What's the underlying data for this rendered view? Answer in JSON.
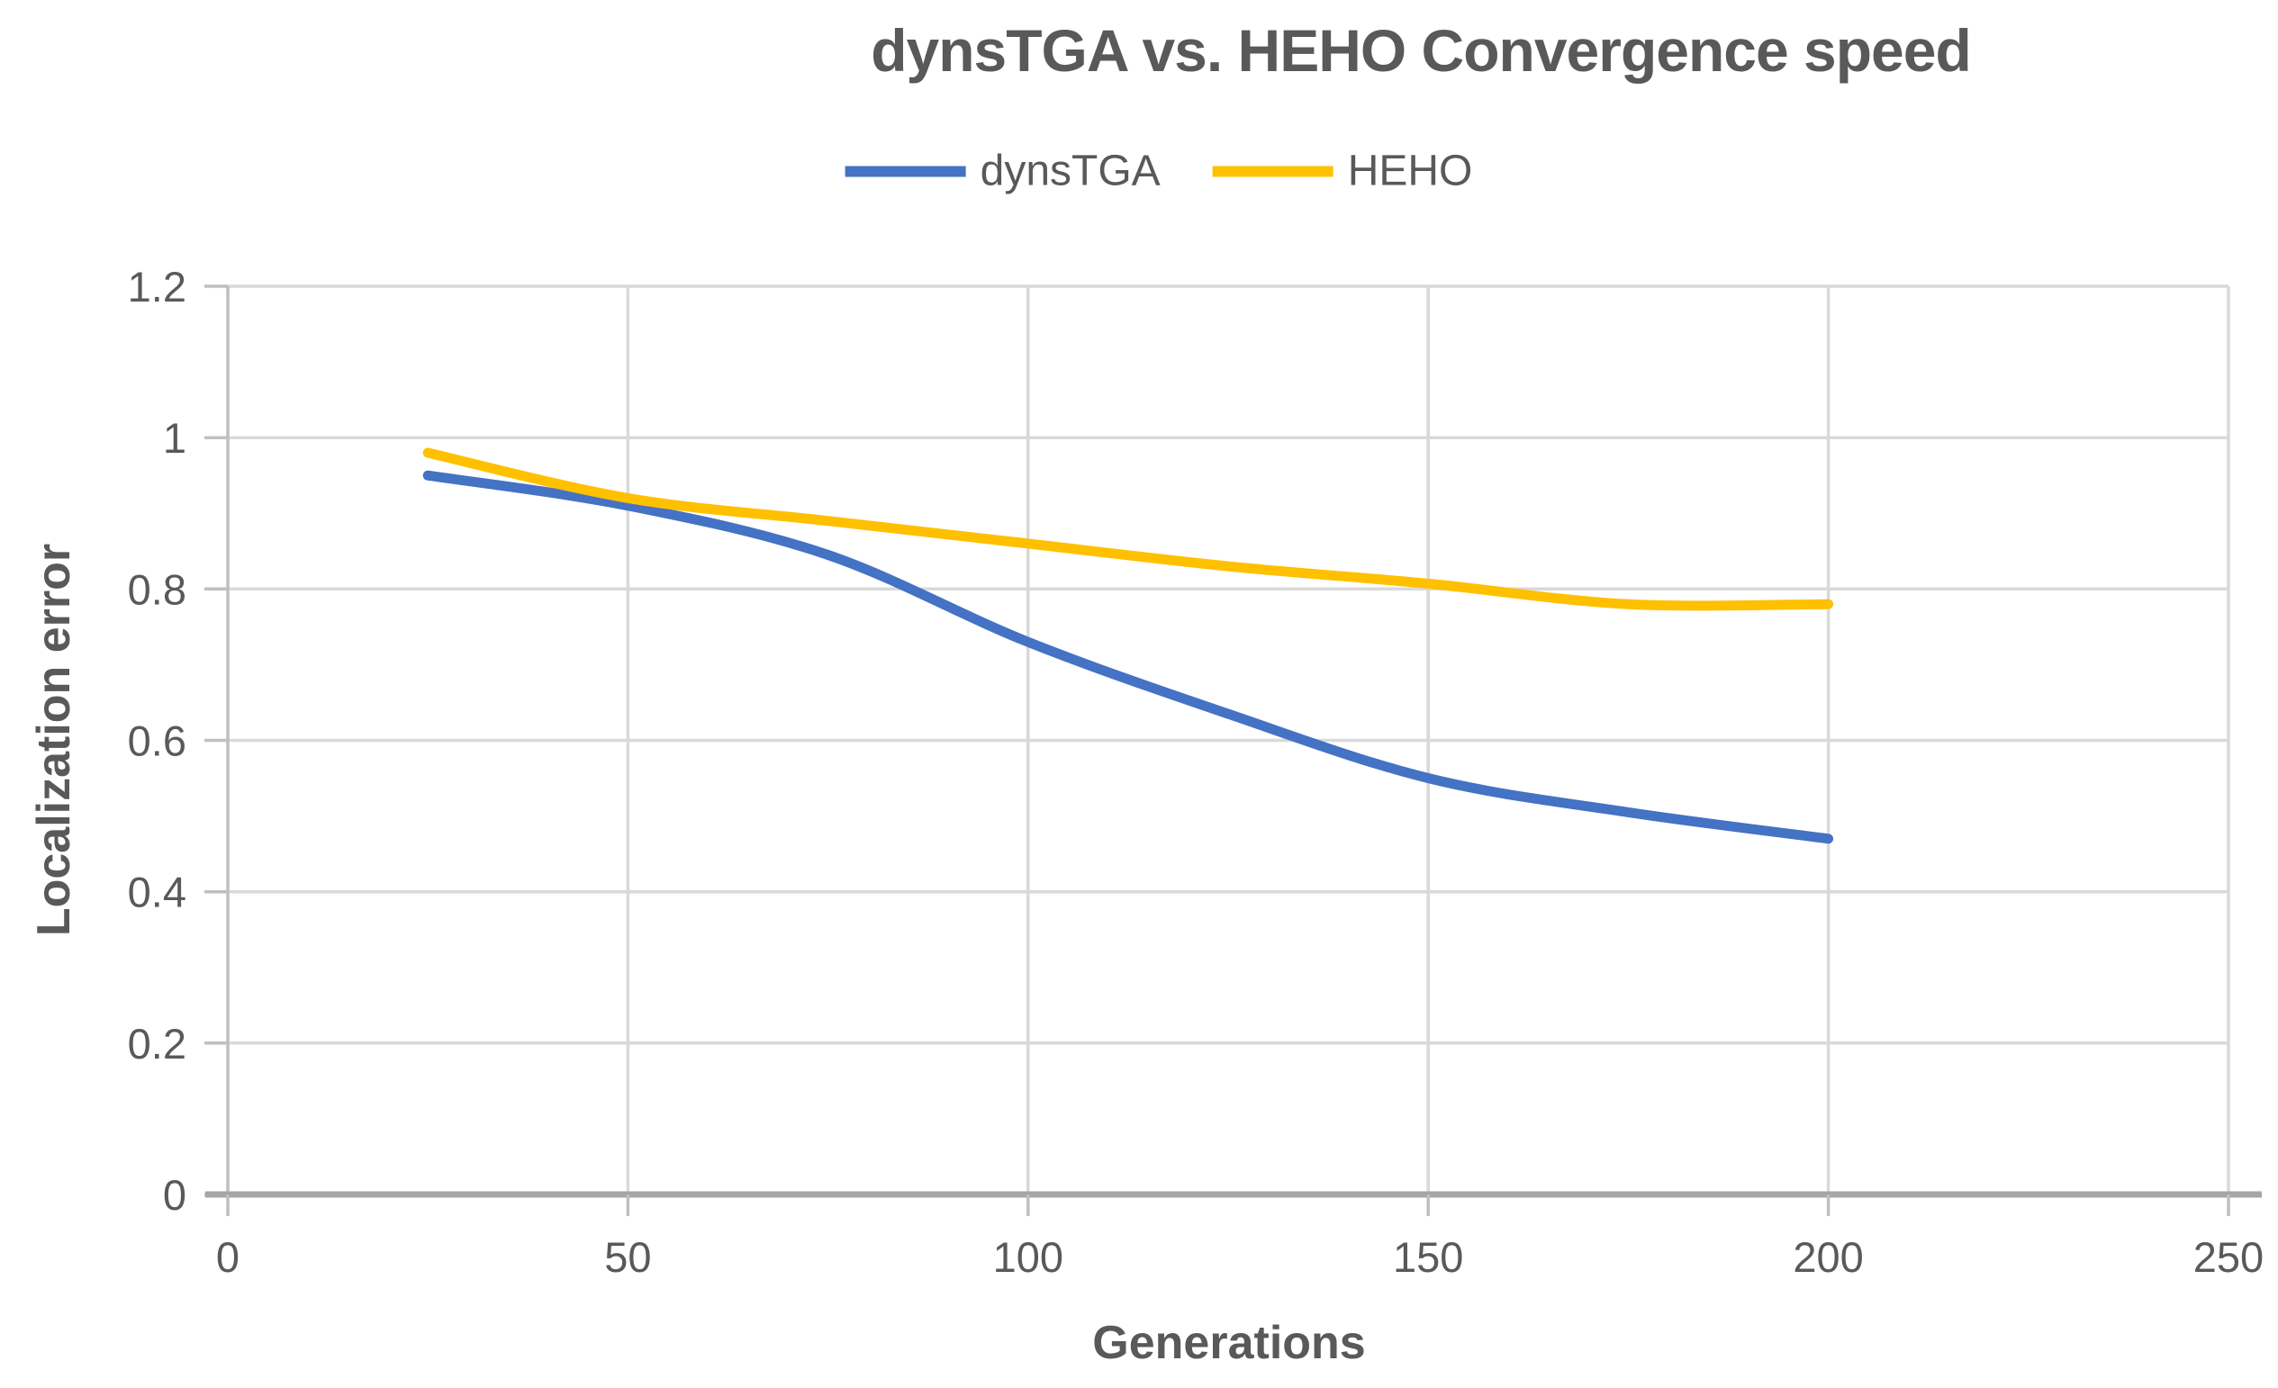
{
  "chart_data": {
    "type": "line",
    "title": "dynsTGA vs. HEHO Convergence speed",
    "xlabel": "Generations",
    "ylabel": "Localization error",
    "x": [
      25,
      50,
      75,
      100,
      125,
      150,
      175,
      200
    ],
    "series": [
      {
        "name": "dynsTGA",
        "color": "#4472C4",
        "values": [
          0.95,
          0.91,
          0.845,
          0.73,
          0.635,
          0.55,
          0.505,
          0.47
        ]
      },
      {
        "name": "HEHO",
        "color": "#FFC000",
        "values": [
          0.98,
          0.92,
          0.89,
          0.86,
          0.83,
          0.807,
          0.78,
          0.78
        ]
      }
    ],
    "xlim": [
      0,
      250
    ],
    "ylim": [
      0,
      1.2
    ],
    "x_ticks": {
      "values": [
        0,
        50,
        100,
        150,
        200,
        250
      ],
      "labels": [
        "0",
        "50",
        "100",
        "150",
        "200",
        "250"
      ]
    },
    "y_ticks": {
      "values": [
        0,
        0.2,
        0.4,
        0.6,
        0.8,
        1,
        1.2
      ],
      "labels": [
        "0",
        "0.2",
        "0.4",
        "0.6",
        "0.8",
        "1",
        "1.2"
      ]
    },
    "grid": "both",
    "legend_position": "top-center",
    "smooth_lines": true,
    "colors": {
      "title_text": "#595959",
      "axis_text": "#595959",
      "gridline": "#D9D9D9",
      "y_axis_line": "#BFBFBF",
      "x_axis_line": "#A6A6A6",
      "background": "#FFFFFF"
    }
  }
}
